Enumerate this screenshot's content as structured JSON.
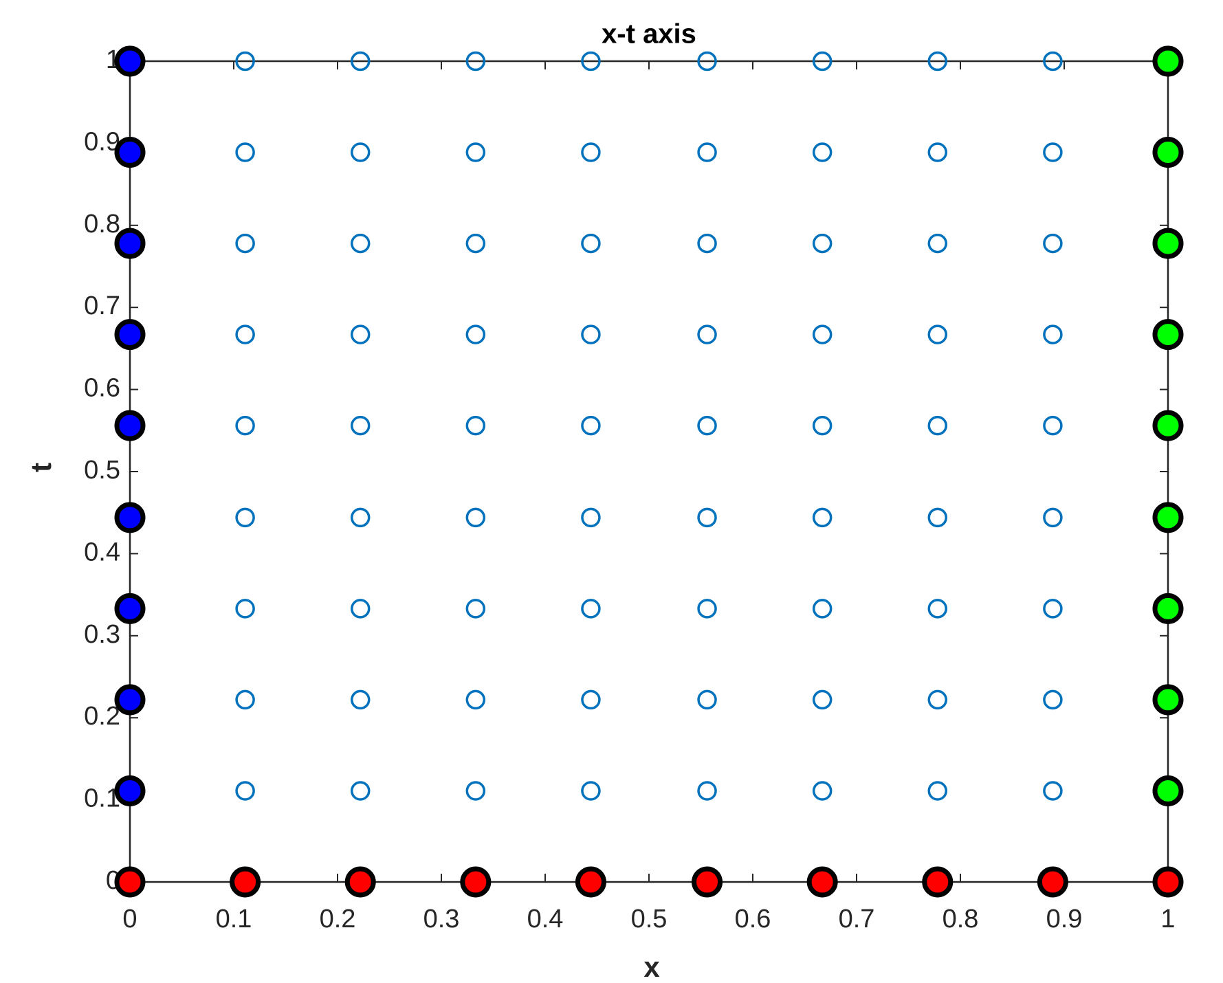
{
  "chart_data": {
    "type": "scatter",
    "title": "x-t axis",
    "xlabel": "x",
    "ylabel": "t",
    "xlim": [
      0,
      1
    ],
    "ylim": [
      0,
      1
    ],
    "xticks": [
      0,
      0.1,
      0.2,
      0.3,
      0.4,
      0.5,
      0.6,
      0.7,
      0.8,
      0.9,
      1
    ],
    "yticks": [
      0,
      0.1,
      0.2,
      0.3,
      0.4,
      0.5,
      0.6,
      0.7,
      0.8,
      0.9,
      1
    ],
    "box": true,
    "series": [
      {
        "color": "#0072bd",
        "filled": false,
        "x": [
          0.111,
          0.222,
          0.333,
          0.444,
          0.556,
          0.667,
          0.778,
          0.889,
          0.111,
          0.222,
          0.333,
          0.444,
          0.556,
          0.667,
          0.778,
          0.889,
          0.111,
          0.222,
          0.333,
          0.444,
          0.556,
          0.667,
          0.778,
          0.889,
          0.111,
          0.222,
          0.333,
          0.444,
          0.556,
          0.667,
          0.778,
          0.889,
          0.111,
          0.222,
          0.333,
          0.444,
          0.556,
          0.667,
          0.778,
          0.889,
          0.111,
          0.222,
          0.333,
          0.444,
          0.556,
          0.667,
          0.778,
          0.889,
          0.111,
          0.222,
          0.333,
          0.444,
          0.556,
          0.667,
          0.778,
          0.889,
          0.111,
          0.222,
          0.333,
          0.444,
          0.556,
          0.667,
          0.778,
          0.889,
          0.111,
          0.222,
          0.333,
          0.444,
          0.556,
          0.667,
          0.778,
          0.889
        ],
        "values": [
          0.111,
          0.111,
          0.111,
          0.111,
          0.111,
          0.111,
          0.111,
          0.111,
          0.222,
          0.222,
          0.222,
          0.222,
          0.222,
          0.222,
          0.222,
          0.222,
          0.333,
          0.333,
          0.333,
          0.333,
          0.333,
          0.333,
          0.333,
          0.333,
          0.444,
          0.444,
          0.444,
          0.444,
          0.444,
          0.444,
          0.444,
          0.444,
          0.556,
          0.556,
          0.556,
          0.556,
          0.556,
          0.556,
          0.556,
          0.556,
          0.667,
          0.667,
          0.667,
          0.667,
          0.667,
          0.667,
          0.667,
          0.667,
          0.778,
          0.778,
          0.778,
          0.778,
          0.778,
          0.778,
          0.778,
          0.778,
          0.889,
          0.889,
          0.889,
          0.889,
          0.889,
          0.889,
          0.889,
          0.889,
          1,
          1,
          1,
          1,
          1,
          1,
          1,
          1
        ]
      },
      {
        "color": "#0000ff",
        "filled": true,
        "edgecolor": "#000000",
        "x": [
          0,
          0,
          0,
          0,
          0,
          0,
          0,
          0,
          0
        ],
        "values": [
          0.111,
          0.222,
          0.333,
          0.444,
          0.556,
          0.667,
          0.778,
          0.889,
          1
        ]
      },
      {
        "color": "#00ff00",
        "filled": true,
        "edgecolor": "#000000",
        "x": [
          1,
          1,
          1,
          1,
          1,
          1,
          1,
          1,
          1
        ],
        "values": [
          0.111,
          0.222,
          0.333,
          0.444,
          0.556,
          0.667,
          0.778,
          0.889,
          1
        ]
      },
      {
        "color": "#ff0000",
        "filled": true,
        "edgecolor": "#000000",
        "x": [
          0,
          0.111,
          0.222,
          0.333,
          0.444,
          0.556,
          0.667,
          0.778,
          0.889,
          1
        ],
        "values": [
          0,
          0,
          0,
          0,
          0,
          0,
          0,
          0,
          0,
          0
        ]
      }
    ]
  }
}
